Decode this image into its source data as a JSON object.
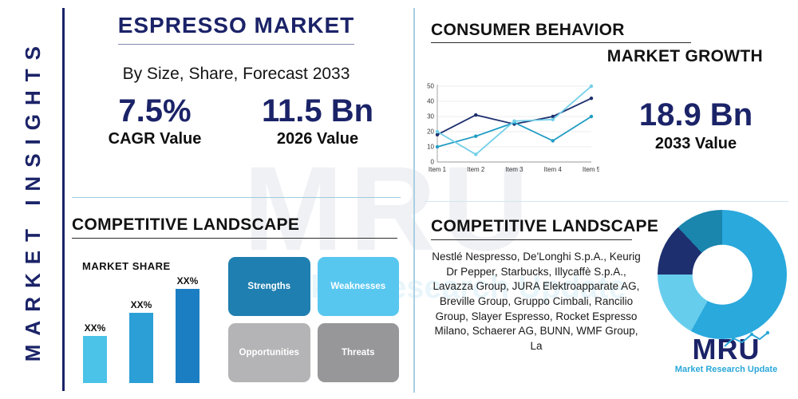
{
  "watermark": {
    "text": "MRU",
    "tagline": "Market Research Update"
  },
  "sidebar": {
    "label": "MARKET INSIGHTS"
  },
  "header": {
    "title": "ESPRESSO MARKET",
    "subtitle": "By Size, Share, Forecast 2033",
    "stats": [
      {
        "value": "7.5%",
        "label": "CAGR Value"
      },
      {
        "value": "11.5 Bn",
        "label": "2026 Value"
      }
    ]
  },
  "consumer_behavior": {
    "title": "CONSUMER BEHAVIOR",
    "stat": {
      "value": "18.9 Bn",
      "label": "2033 Value"
    }
  },
  "competitive_left": {
    "title": "COMPETITIVE LANDSCAPE",
    "swot": [
      {
        "label": "Strengths",
        "color": "#1f7fb0"
      },
      {
        "label": "Weaknesses",
        "color": "#58c7f0"
      },
      {
        "label": "Opportunities",
        "color": "#b4b4b6"
      },
      {
        "label": "Threats",
        "color": "#97979a"
      }
    ]
  },
  "competitive_right": {
    "title": "COMPETITIVE LANDSCAPE",
    "companies": "Nestlé Nespresso, De'Longhi S.p.A., Keurig Dr Pepper, Starbucks, Illycaffè S.p.A., Lavazza Group, JURA Elektroapparate AG, Breville Group, Gruppo Cimbali, Rancilio Group, Slayer Espresso, Rocket Espresso Milano, Schaerer AG, BUNN, WMF Group, La"
  },
  "logo": {
    "text": "MRU",
    "tagline": "Market Research Update"
  },
  "chart_data": [
    {
      "type": "line",
      "title": "MARKET GROWTH",
      "categories": [
        "Item 1",
        "Item 2",
        "Item 3",
        "Item 4",
        "Item 5"
      ],
      "series": [
        {
          "name": "navy-series",
          "color": "#1c2e6e",
          "values": [
            18,
            31,
            25,
            30,
            42
          ]
        },
        {
          "name": "teal-series",
          "color": "#1f9cc4",
          "values": [
            10,
            17,
            26,
            14,
            30
          ]
        },
        {
          "name": "light-blue-series",
          "color": "#72cfe9",
          "values": [
            20,
            5,
            27,
            28,
            50
          ]
        }
      ],
      "ylim": [
        0,
        50
      ],
      "yticks": [
        0,
        10,
        20,
        30,
        40,
        50
      ],
      "grid": true,
      "legend": false
    },
    {
      "type": "bar",
      "title": "MARKET SHARE",
      "categories": [
        "XX%",
        "XX%",
        "XX%"
      ],
      "values": [
        30,
        45,
        60
      ],
      "colors": [
        "#4bc2e8",
        "#2b9fd6",
        "#1b7ec2"
      ]
    },
    {
      "type": "pie",
      "title": "Competitive share donut",
      "segments": [
        {
          "name": "primary-blue",
          "value": 58,
          "color": "#2aa9dd"
        },
        {
          "name": "light-blue",
          "value": 17,
          "color": "#67cdec"
        },
        {
          "name": "navy",
          "value": 13,
          "color": "#1d2f6f"
        },
        {
          "name": "teal",
          "value": 12,
          "color": "#1a85ad"
        }
      ],
      "hole_ratio": 0.46
    }
  ]
}
